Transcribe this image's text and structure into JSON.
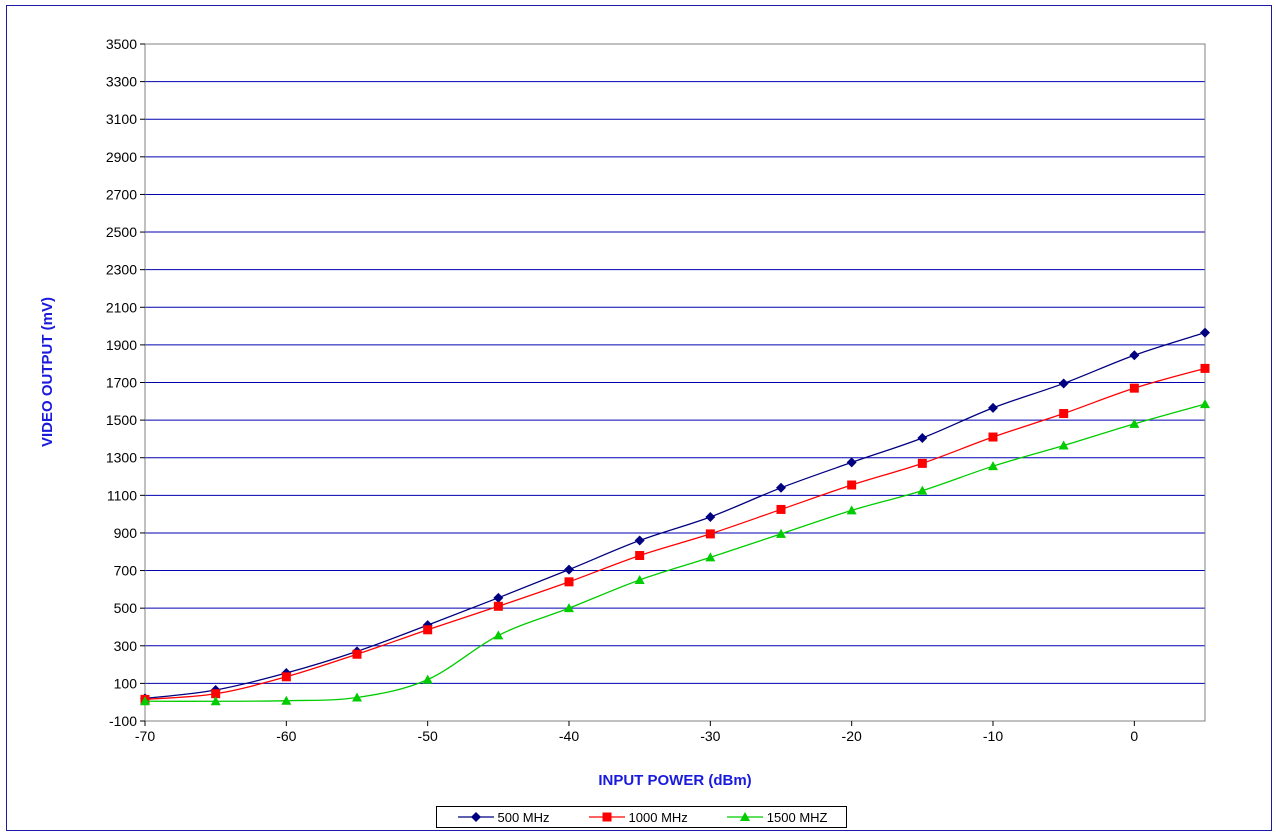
{
  "chart_data": {
    "type": "line",
    "xlabel": "INPUT POWER (dBm)",
    "ylabel": "VIDEO OUTPUT (mV)",
    "xlim": [
      -70,
      5
    ],
    "ylim": [
      -100,
      3500
    ],
    "xticks": [
      -70,
      -60,
      -50,
      -40,
      -30,
      -20,
      -10,
      0
    ],
    "yticks": [
      -100,
      100,
      300,
      500,
      700,
      900,
      1100,
      1300,
      1500,
      1700,
      1900,
      2100,
      2300,
      2500,
      2700,
      2900,
      3100,
      3300,
      3500
    ],
    "grid": "horizontal",
    "legend_position": "bottom",
    "x": [
      -70,
      -65,
      -60,
      -55,
      -50,
      -45,
      -40,
      -35,
      -30,
      -25,
      -20,
      -15,
      -10,
      -5,
      0,
      5
    ],
    "series": [
      {
        "name": "500 MHz",
        "color": "#000080",
        "marker": "diamond",
        "values": [
          20,
          65,
          155,
          270,
          410,
          555,
          705,
          860,
          985,
          1140,
          1275,
          1405,
          1565,
          1695,
          1845,
          1965
        ]
      },
      {
        "name": "1000 MHz",
        "color": "#ff0000",
        "marker": "square",
        "values": [
          15,
          45,
          135,
          255,
          385,
          510,
          640,
          780,
          895,
          1025,
          1155,
          1270,
          1410,
          1535,
          1670,
          1775
        ]
      },
      {
        "name": "1500 MHZ",
        "color": "#00cc00",
        "marker": "triangle",
        "values": [
          5,
          5,
          8,
          25,
          120,
          355,
          500,
          650,
          770,
          895,
          1020,
          1125,
          1255,
          1365,
          1480,
          1585
        ]
      }
    ]
  }
}
